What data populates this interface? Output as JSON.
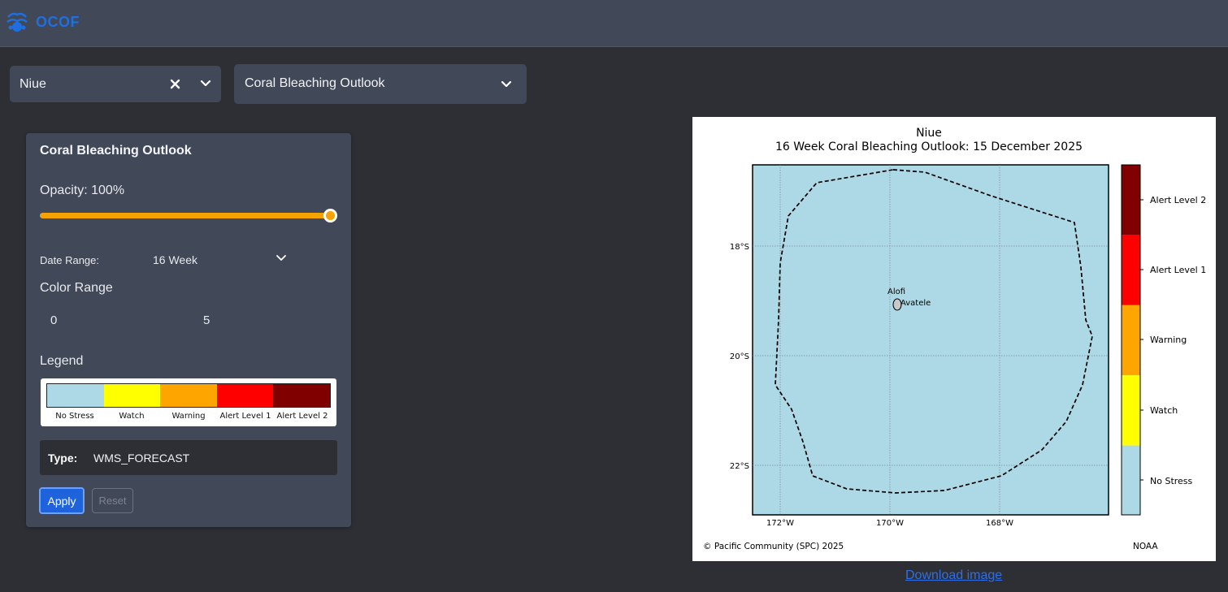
{
  "header": {
    "app_name": "OCOF",
    "logo_icon": "ocof-logo-icon"
  },
  "selectors": {
    "country": {
      "value": "Niue",
      "clear_icon": "close-icon",
      "open_icon": "chevron-down-icon"
    },
    "layer": {
      "value": "Coral Bleaching Outlook",
      "open_icon": "chevron-down-icon"
    }
  },
  "panel": {
    "title": "Coral Bleaching Outlook",
    "opacity_label": "Opacity: 100%",
    "opacity_value": 1.0,
    "date_range_label": "Date Range:",
    "date_range_value": "16 Week",
    "color_range_label": "Color Range",
    "color_range_min": "0",
    "color_range_max": "5",
    "legend_label": "Legend",
    "legend_items": [
      {
        "name": "No Stress",
        "color": "#add8e6"
      },
      {
        "name": "Watch",
        "color": "#ffff00"
      },
      {
        "name": "Warning",
        "color": "#ffa500"
      },
      {
        "name": "Alert Level 1",
        "color": "#ff0000"
      },
      {
        "name": "Alert Level 2",
        "color": "#800000"
      }
    ],
    "type_label": "Type:",
    "type_value": "WMS_FORECAST",
    "apply_label": "Apply",
    "reset_label": "Reset"
  },
  "map": {
    "title_line1": "Niue",
    "title_line2": "16 Week Coral Bleaching Outlook: 15 December 2025",
    "lat_labels": [
      "18°S",
      "20°S",
      "22°S"
    ],
    "lon_labels": [
      "172°W",
      "170°W",
      "168°W"
    ],
    "place_labels": [
      "Alofi",
      "Avatele"
    ],
    "colorbar_labels": [
      "Alert Level 2",
      "Alert Level 1",
      "Warning",
      "Watch",
      "No Stress"
    ],
    "credit": "© Pacific Community (SPC) 2025",
    "source": "NOAA",
    "ocean_color": "#add8e6"
  },
  "download_label": "Download image"
}
